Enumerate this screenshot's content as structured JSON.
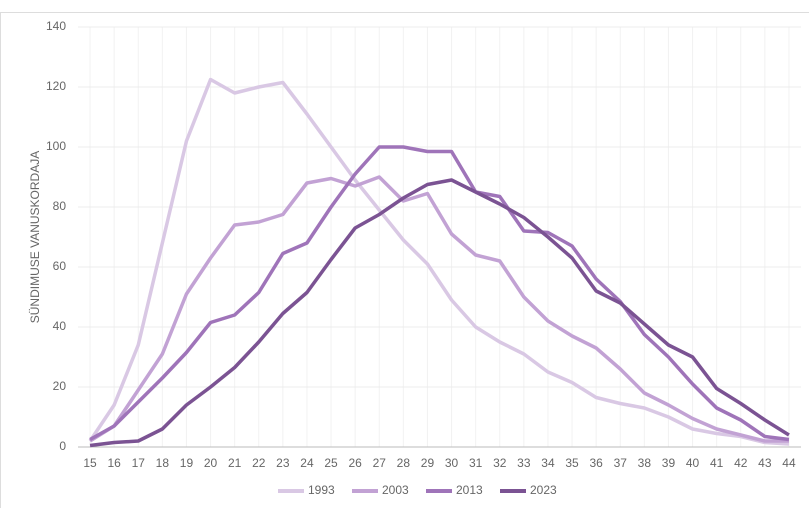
{
  "chart_data": {
    "type": "line",
    "y_label": "SÜNDIMUSE VANUSKORDAJA",
    "categories": [
      15,
      16,
      17,
      18,
      19,
      20,
      21,
      22,
      23,
      24,
      25,
      26,
      27,
      28,
      29,
      30,
      31,
      32,
      33,
      34,
      35,
      36,
      37,
      38,
      39,
      40,
      41,
      42,
      43,
      44
    ],
    "ylim": [
      0,
      140
    ],
    "yticks": [
      0,
      20,
      40,
      60,
      80,
      100,
      120,
      140
    ],
    "grid": true,
    "legend": "bottom",
    "series": [
      {
        "name": "1993",
        "color": "#d9c8e4",
        "values": [
          2,
          14,
          34,
          68,
          102,
          122.5,
          118,
          120,
          121.5,
          111,
          100,
          89,
          79,
          69,
          61,
          49,
          40,
          35,
          31,
          25,
          21.5,
          16.5,
          14.5,
          13,
          10,
          6,
          4.5,
          3.5,
          1.5,
          1
        ]
      },
      {
        "name": "2003",
        "color": "#c2a2d4",
        "values": [
          2,
          7,
          19,
          31,
          51,
          63,
          74,
          75,
          77.5,
          88,
          89.5,
          87,
          90,
          82,
          84.5,
          71,
          64,
          62,
          50,
          42,
          37,
          33,
          26,
          18,
          14,
          9.5,
          6,
          4,
          2,
          2
        ]
      },
      {
        "name": "2013",
        "color": "#9f74b9",
        "values": [
          2.5,
          7,
          15,
          23,
          31.5,
          41.5,
          44,
          51.5,
          64.5,
          68,
          80,
          91,
          100,
          100,
          98.5,
          98.5,
          85,
          83.5,
          72,
          71.5,
          67,
          56,
          48.5,
          37.5,
          30,
          21,
          13,
          9,
          3.5,
          2.5
        ]
      },
      {
        "name": "2023",
        "color": "#7b5393",
        "values": [
          0.5,
          1.5,
          2,
          6,
          14,
          20,
          26.5,
          35,
          44.5,
          51.5,
          62.5,
          73,
          77.5,
          83,
          87.5,
          89,
          85,
          81,
          76.5,
          70,
          63,
          52,
          48,
          41,
          34,
          30,
          19.5,
          14.5,
          9,
          4
        ]
      }
    ]
  }
}
